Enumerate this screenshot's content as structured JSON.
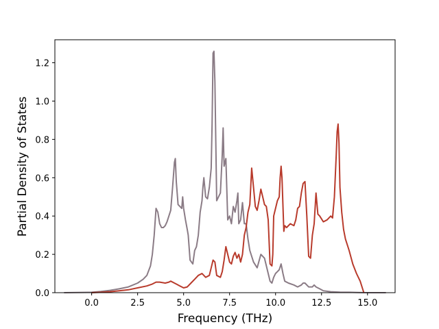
{
  "chart_data": {
    "type": "line",
    "title": "",
    "xlabel": "Frequency (THz)",
    "ylabel": "Partial Density of States",
    "xlim": [
      -2.0,
      16.5
    ],
    "ylim": [
      0.0,
      1.32
    ],
    "xticks": [
      "0.0",
      "2.5",
      "5.0",
      "7.5",
      "10.0",
      "12.5",
      "15.0"
    ],
    "yticks": [
      "0.0",
      "0.2",
      "0.4",
      "0.6",
      "0.8",
      "1.0",
      "1.2"
    ],
    "grid": false,
    "legend": "none",
    "series": [
      {
        "color": "#8a7b85",
        "x": [
          -1.5,
          0.0,
          0.5,
          1.0,
          1.5,
          2.0,
          2.5,
          2.8,
          3.0,
          3.2,
          3.3,
          3.4,
          3.5,
          3.6,
          3.7,
          3.8,
          3.9,
          4.0,
          4.1,
          4.2,
          4.3,
          4.4,
          4.5,
          4.55,
          4.6,
          4.7,
          4.8,
          4.9,
          4.95,
          5.0,
          5.1,
          5.2,
          5.25,
          5.35,
          5.5,
          5.6,
          5.7,
          5.8,
          5.9,
          6.0,
          6.05,
          6.1,
          6.2,
          6.3,
          6.4,
          6.5,
          6.55,
          6.6,
          6.65,
          6.7,
          6.8,
          6.9,
          7.0,
          7.1,
          7.15,
          7.2,
          7.3,
          7.4,
          7.5,
          7.6,
          7.7,
          7.8,
          7.9,
          7.95,
          8.0,
          8.1,
          8.2,
          8.3,
          8.4,
          8.5,
          8.6,
          8.8,
          9.0,
          9.2,
          9.4,
          9.6,
          9.7,
          9.8,
          9.9,
          10.0,
          10.1,
          10.2,
          10.3,
          10.4,
          10.5,
          10.7,
          11.0,
          11.2,
          11.4,
          11.5,
          11.6,
          11.7,
          11.8,
          12.0,
          12.1,
          12.2,
          12.4,
          12.6,
          13.0,
          13.5,
          14.0,
          14.5,
          15.0,
          15.5,
          16.0
        ],
        "y": [
          0.0,
          0.002,
          0.006,
          0.012,
          0.02,
          0.03,
          0.05,
          0.07,
          0.09,
          0.14,
          0.2,
          0.3,
          0.44,
          0.42,
          0.36,
          0.34,
          0.34,
          0.35,
          0.37,
          0.4,
          0.43,
          0.55,
          0.68,
          0.7,
          0.58,
          0.46,
          0.45,
          0.44,
          0.5,
          0.44,
          0.38,
          0.33,
          0.3,
          0.17,
          0.15,
          0.22,
          0.24,
          0.3,
          0.42,
          0.48,
          0.55,
          0.6,
          0.5,
          0.49,
          0.55,
          0.65,
          0.88,
          1.25,
          1.26,
          1.1,
          0.48,
          0.5,
          0.52,
          0.72,
          0.86,
          0.66,
          0.7,
          0.38,
          0.4,
          0.36,
          0.45,
          0.42,
          0.48,
          0.52,
          0.36,
          0.38,
          0.47,
          0.36,
          0.36,
          0.28,
          0.22,
          0.16,
          0.13,
          0.2,
          0.18,
          0.1,
          0.06,
          0.05,
          0.08,
          0.1,
          0.11,
          0.12,
          0.15,
          0.1,
          0.06,
          0.05,
          0.04,
          0.03,
          0.04,
          0.05,
          0.05,
          0.04,
          0.03,
          0.03,
          0.04,
          0.03,
          0.02,
          0.01,
          0.005,
          0.003,
          0.002,
          0.001,
          0.0,
          0.0,
          0.0
        ]
      },
      {
        "color": "#b83a2b",
        "x": [
          0.0,
          0.5,
          1.0,
          1.5,
          2.0,
          2.5,
          3.0,
          3.3,
          3.5,
          3.7,
          4.0,
          4.2,
          4.3,
          4.5,
          4.6,
          4.8,
          5.0,
          5.2,
          5.4,
          5.6,
          5.8,
          6.0,
          6.2,
          6.4,
          6.5,
          6.6,
          6.7,
          6.8,
          7.0,
          7.1,
          7.2,
          7.3,
          7.4,
          7.5,
          7.6,
          7.7,
          7.8,
          7.9,
          8.0,
          8.1,
          8.2,
          8.3,
          8.4,
          8.5,
          8.6,
          8.65,
          8.7,
          8.8,
          8.9,
          9.0,
          9.1,
          9.2,
          9.3,
          9.4,
          9.5,
          9.6,
          9.7,
          9.8,
          9.85,
          9.9,
          10.0,
          10.1,
          10.2,
          10.25,
          10.3,
          10.35,
          10.45,
          10.5,
          10.6,
          10.8,
          11.0,
          11.1,
          11.2,
          11.3,
          11.4,
          11.5,
          11.6,
          11.7,
          11.8,
          11.9,
          12.0,
          12.1,
          12.2,
          12.3,
          12.4,
          12.6,
          12.8,
          13.0,
          13.1,
          13.2,
          13.3,
          13.35,
          13.4,
          13.45,
          13.5,
          13.6,
          13.7,
          13.8,
          14.0,
          14.2,
          14.4,
          14.6,
          14.8
        ],
        "y": [
          0.0,
          0.002,
          0.005,
          0.01,
          0.015,
          0.025,
          0.035,
          0.045,
          0.055,
          0.055,
          0.05,
          0.055,
          0.06,
          0.05,
          0.045,
          0.035,
          0.025,
          0.03,
          0.05,
          0.07,
          0.09,
          0.1,
          0.08,
          0.09,
          0.13,
          0.17,
          0.16,
          0.09,
          0.08,
          0.11,
          0.17,
          0.24,
          0.2,
          0.16,
          0.15,
          0.19,
          0.21,
          0.18,
          0.2,
          0.16,
          0.2,
          0.3,
          0.34,
          0.42,
          0.46,
          0.55,
          0.65,
          0.55,
          0.45,
          0.43,
          0.48,
          0.54,
          0.5,
          0.46,
          0.45,
          0.38,
          0.15,
          0.14,
          0.2,
          0.4,
          0.44,
          0.48,
          0.5,
          0.6,
          0.66,
          0.6,
          0.32,
          0.35,
          0.34,
          0.36,
          0.35,
          0.38,
          0.44,
          0.45,
          0.52,
          0.57,
          0.58,
          0.4,
          0.19,
          0.18,
          0.3,
          0.36,
          0.52,
          0.41,
          0.4,
          0.37,
          0.38,
          0.4,
          0.39,
          0.5,
          0.72,
          0.84,
          0.88,
          0.78,
          0.55,
          0.42,
          0.33,
          0.28,
          0.22,
          0.15,
          0.1,
          0.06,
          0.0
        ]
      }
    ]
  }
}
